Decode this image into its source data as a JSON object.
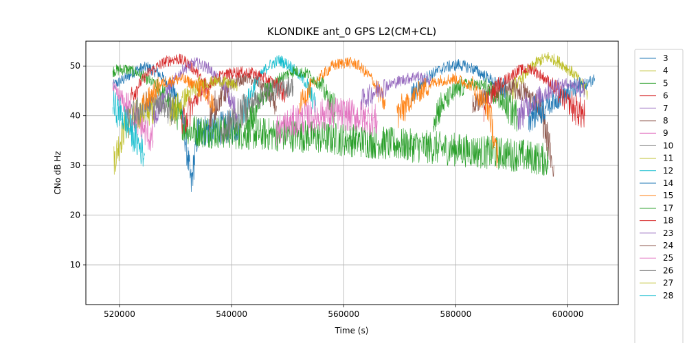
{
  "chart_data": {
    "type": "line",
    "title": "KLONDIKE ant_0 GPS L2(CM+CL)",
    "xlabel": "Time (s)",
    "ylabel": "CNo dB Hz",
    "xlim": [
      514000,
      609000
    ],
    "ylim": [
      2,
      55
    ],
    "x_ticks": [
      520000,
      540000,
      560000,
      580000,
      600000
    ],
    "y_ticks": [
      10,
      20,
      30,
      40,
      50
    ],
    "grid": true,
    "legend_position": "outside-right",
    "series": [
      {
        "name": "3",
        "color": "#1f77b4",
        "segments": [
          {
            "x": [
              518800,
              521000,
              523000,
              525000,
              527000,
              529000,
              531000,
              532800,
              534000,
              536000,
              538000,
              540000,
              541500
            ],
            "y": [
              46,
              47.5,
              49.2,
              49.8,
              48.5,
              46,
              42,
              26,
              37,
              37.2,
              37.5,
              37.8,
              38
            ]
          }
        ]
      },
      {
        "name": "4",
        "color": "#bcbd22",
        "segments": [
          {
            "x": [
              519000,
              521000,
              523000,
              525000,
              526500
            ],
            "y": [
              31,
              38,
              40,
              41,
              42
            ]
          }
        ]
      },
      {
        "name": "5",
        "color": "#2ca02c",
        "segments": [
          {
            "x": [
              518800,
              521000,
              523500,
              526000,
              528000,
              530000,
              531500,
              533000,
              542000,
              552000,
              562000,
              572000,
              582000,
              592000,
              596500
            ],
            "y": [
              49,
              49.4,
              48.5,
              46.5,
              44,
              41,
              38,
              37,
              36.5,
              36,
              35,
              34,
              33,
              32,
              31
            ]
          }
        ]
      },
      {
        "name": "6",
        "color": "#d62728",
        "segments": [
          {
            "x": [
              522000,
              525000,
              528000,
              530000,
              532000,
              534000,
              536000
            ],
            "y": [
              44,
              48.5,
              50.8,
              51.5,
              50.8,
              48.5,
              44
            ]
          }
        ]
      },
      {
        "name": "7",
        "color": "#9467bd",
        "segments": [
          {
            "x": [
              526000,
              529000,
              531500,
              533500,
              536000,
              538500,
              541000
            ],
            "y": [
              40,
              46,
              49.5,
              50.7,
              49.5,
              46,
              40
            ]
          }
        ]
      },
      {
        "name": "8",
        "color": "#8c564b",
        "segments": [
          {
            "x": [
              536000,
              539000,
              541000,
              543000,
              545000,
              548000
            ],
            "y": [
              40,
              45,
              47,
              47.5,
              46.5,
              42
            ]
          }
        ]
      },
      {
        "name": "9",
        "color": "#e377c2",
        "segments": [
          {
            "x": [
              518800,
              520500,
              522500,
              524500,
              526000
            ],
            "y": [
              45,
              43,
              40,
              37,
              35
            ]
          }
        ]
      },
      {
        "name": "10",
        "color": "#7f7f7f",
        "segments": [
          {
            "x": [
              521000,
              523500,
              526000,
              528000,
              530000
            ],
            "y": [
              38,
              41,
              42.5,
              42,
              41
            ]
          }
        ]
      },
      {
        "name": "11",
        "color": "#bcbd22",
        "segments": [
          {
            "x": [
              590000,
              592500,
              594500,
              596500,
              598500,
              601000,
              603500
            ],
            "y": [
              45,
              48.5,
              50.8,
              51.8,
              50.8,
              48.5,
              45
            ]
          }
        ]
      },
      {
        "name": "12",
        "color": "#17becf",
        "segments": [
          {
            "x": [
              542000,
              544500,
              546500,
              548500,
              550500,
              553000,
              555000
            ],
            "y": [
              41,
              47,
              50,
              51.2,
              50,
              47,
              42
            ]
          }
        ]
      },
      {
        "name": "14",
        "color": "#1f77b4",
        "segments": [
          {
            "x": [
              572000,
              575000,
              578000,
              580500,
              583000,
              586000,
              589000
            ],
            "y": [
              44,
              48,
              49.7,
              50.3,
              49.5,
              47.5,
              45
            ]
          }
        ]
      },
      {
        "name": "15",
        "color": "#ff7f0e",
        "segments": [
          {
            "x": [
              552000,
              555000,
              558000,
              560500,
              562500,
              565000,
              567500
            ],
            "y": [
              42,
              47,
              50,
              50.8,
              50.3,
              47.5,
              42
            ]
          }
        ]
      },
      {
        "name": "17",
        "color": "#2ca02c",
        "segments": [
          {
            "x": [
              542500,
              545500,
              548500,
              551000,
              553500,
              556000,
              558500
            ],
            "y": [
              38,
              44,
              47.5,
              49,
              48.5,
              46,
              41
            ]
          }
        ]
      },
      {
        "name": "18",
        "color": "#d62728",
        "segments": [
          {
            "x": [
              531000,
              534500,
              538000,
              541000,
              544000,
              547000,
              550000
            ],
            "y": [
              38,
              45,
              48,
              48.8,
              48.5,
              47,
              44
            ]
          }
        ]
      },
      {
        "name": "23",
        "color": "#9467bd",
        "segments": [
          {
            "x": [
              563000,
              566500,
              570000,
              573000,
              575500
            ],
            "y": [
              43,
              45.5,
              47,
              48,
              47
            ]
          }
        ]
      },
      {
        "name": "24",
        "color": "#8c564b",
        "segments": [
          {
            "x": [
              583000,
              586000,
              589000,
              592000,
              595000,
              597500
            ],
            "y": [
              42,
              44.5,
              45.5,
              45,
              42,
              30
            ]
          }
        ]
      },
      {
        "name": "25",
        "color": "#e377c2",
        "segments": [
          {
            "x": [
              548000,
              551500,
              555000,
              558500,
              562000,
              566000
            ],
            "y": [
              37,
              39,
              40,
              40.5,
              40,
              39
            ]
          }
        ]
      },
      {
        "name": "26",
        "color": "#7f7f7f",
        "segments": [
          {
            "x": [
              538000,
              541000,
              544000,
              547000,
              551000
            ],
            "y": [
              36,
              40,
              43,
              45,
              46
            ]
          }
        ]
      },
      {
        "name": "27",
        "color": "#bcbd22",
        "segments": [
          {
            "x": [
              529000,
              532000,
              535000,
              538000,
              541000
            ],
            "y": [
              40,
              44,
              46.5,
              47,
              46
            ]
          }
        ]
      },
      {
        "name": "28",
        "color": "#17becf",
        "segments": [
          {
            "x": [
              518800,
              520500,
              522500,
              524500
            ],
            "y": [
              42,
              40,
              36,
              32
            ]
          }
        ]
      },
      {
        "name": "",
        "color": "#1f77b4",
        "segments": [
          {
            "x": [
              593000,
              596000,
              599000,
              601500,
              603500,
              604800
            ],
            "y": [
              40,
              42,
              44,
              45.5,
              46.5,
              47.5
            ]
          }
        ]
      },
      {
        "name": "",
        "color": "#2ca02c",
        "segments": [
          {
            "x": [
              576000,
              579000,
              582000,
              585000,
              588000,
              591000
            ],
            "y": [
              40,
              44,
              46.5,
              46,
              43,
              40
            ]
          }
        ]
      },
      {
        "name": "",
        "color": "#d62728",
        "segments": [
          {
            "x": [
              585000,
              588000,
              591000,
              593500,
              596500,
              599500,
              603000
            ],
            "y": [
              42,
              46.5,
              49,
              49.5,
              47,
              43,
              40
            ]
          }
        ]
      },
      {
        "name": "",
        "color": "#ff7f0e",
        "segments": [
          {
            "x": [
              524000,
              527500,
              531000,
              534000,
              537000
            ],
            "y": [
              42,
              46.5,
              47.5,
              46,
              42
            ]
          },
          {
            "x": [
              569500,
              573000,
              576500,
              580000,
              583000,
              586000,
              587500
            ],
            "y": [
              40,
              44.5,
              47,
              47.5,
              46,
              41,
              30.5
            ]
          }
        ]
      },
      {
        "name": "",
        "color": "#9467bd",
        "segments": [
          {
            "x": [
              591000,
              594000,
              597000,
              600000,
              603000
            ],
            "y": [
              40,
              43,
              45.5,
              46.5,
              45.5
            ]
          }
        ]
      }
    ]
  }
}
